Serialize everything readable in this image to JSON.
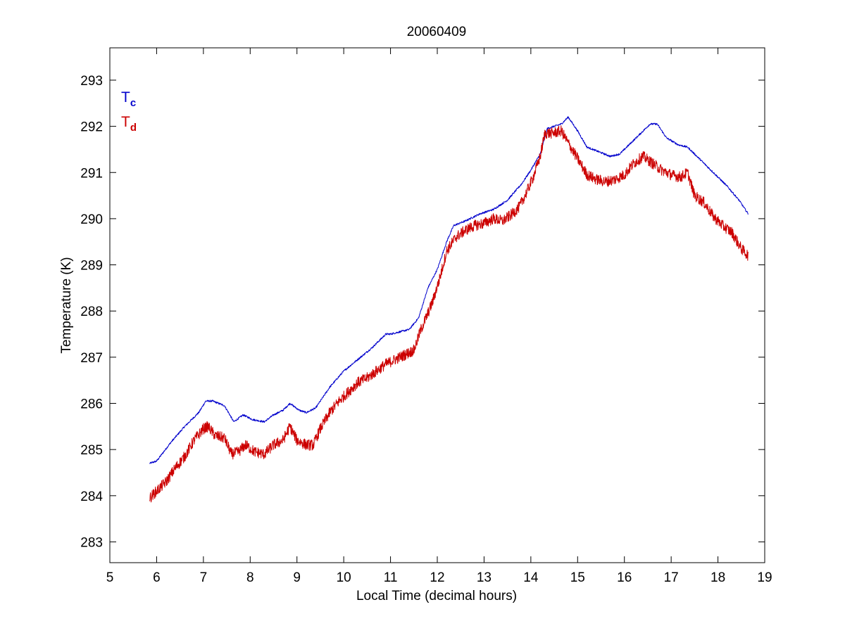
{
  "chart_data": {
    "type": "line",
    "title": "20060409",
    "xlabel": "Local Time (decimal hours)",
    "ylabel": "Temperature (K)",
    "xlim": [
      5,
      19
    ],
    "ylim": [
      282.55,
      293.7
    ],
    "xticks": [
      "5",
      "6",
      "7",
      "8",
      "9",
      "10",
      "11",
      "12",
      "13",
      "14",
      "15",
      "16",
      "17",
      "18",
      "19"
    ],
    "yticks": [
      "283",
      "284",
      "285",
      "286",
      "287",
      "288",
      "289",
      "290",
      "291",
      "292",
      "293"
    ],
    "grid": false,
    "legend_position": "top-left",
    "legend": [
      {
        "main": "T",
        "sub": "c",
        "color": "#0000cc"
      },
      {
        "main": "T",
        "sub": "d",
        "color": "#cc0000"
      }
    ],
    "series": [
      {
        "label": "Tc",
        "color": "#0000cc",
        "noise": 0.02,
        "x": [
          5.85,
          6.0,
          6.3,
          6.6,
          6.9,
          7.05,
          7.2,
          7.45,
          7.65,
          7.85,
          8.05,
          8.3,
          8.5,
          8.7,
          8.85,
          9.05,
          9.2,
          9.4,
          9.7,
          10.0,
          10.3,
          10.6,
          10.9,
          11.0,
          11.4,
          11.6,
          11.8,
          12.0,
          12.2,
          12.35,
          12.6,
          12.9,
          13.2,
          13.5,
          13.8,
          14.0,
          14.2,
          14.35,
          14.5,
          14.65,
          14.8,
          15.0,
          15.2,
          15.45,
          15.7,
          15.9,
          16.1,
          16.3,
          16.55,
          16.7,
          16.9,
          17.15,
          17.35,
          17.6,
          17.9,
          18.2,
          18.45,
          18.65
        ],
        "y": [
          284.7,
          284.75,
          285.15,
          285.5,
          285.8,
          286.05,
          286.05,
          285.95,
          285.6,
          285.75,
          285.65,
          285.6,
          285.75,
          285.85,
          286.0,
          285.85,
          285.8,
          285.9,
          286.35,
          286.7,
          286.95,
          287.2,
          287.5,
          287.5,
          287.6,
          287.85,
          288.5,
          288.9,
          289.5,
          289.85,
          289.95,
          290.1,
          290.2,
          290.4,
          290.75,
          291.05,
          291.4,
          291.95,
          292.0,
          292.05,
          292.2,
          291.9,
          291.55,
          291.45,
          291.35,
          291.4,
          291.6,
          291.8,
          292.05,
          292.05,
          291.75,
          291.6,
          291.55,
          291.3,
          291.0,
          290.7,
          290.4,
          290.1
        ]
      },
      {
        "label": "Td",
        "color": "#cc0000",
        "noise": 0.12,
        "x": [
          5.85,
          6.0,
          6.2,
          6.4,
          6.6,
          6.8,
          7.0,
          7.1,
          7.25,
          7.45,
          7.6,
          7.75,
          7.9,
          8.1,
          8.3,
          8.5,
          8.7,
          8.85,
          9.0,
          9.2,
          9.35,
          9.5,
          9.7,
          9.9,
          10.1,
          10.3,
          10.5,
          10.7,
          10.9,
          11.1,
          11.3,
          11.5,
          11.65,
          11.8,
          11.9,
          12.05,
          12.2,
          12.4,
          12.6,
          12.8,
          13.0,
          13.2,
          13.4,
          13.6,
          13.75,
          13.9,
          14.05,
          14.2,
          14.3,
          14.45,
          14.65,
          14.85,
          15.0,
          15.2,
          15.4,
          15.6,
          15.8,
          16.0,
          16.2,
          16.4,
          16.6,
          16.8,
          17.0,
          17.2,
          17.35,
          17.5,
          17.7,
          17.9,
          18.1,
          18.3,
          18.5,
          18.65
        ],
        "y": [
          283.95,
          284.1,
          284.3,
          284.6,
          284.85,
          285.2,
          285.45,
          285.5,
          285.3,
          285.25,
          284.9,
          284.95,
          285.1,
          284.95,
          284.9,
          285.1,
          285.2,
          285.5,
          285.2,
          285.1,
          285.1,
          285.45,
          285.8,
          286.05,
          286.25,
          286.45,
          286.55,
          286.7,
          286.85,
          286.95,
          287.05,
          287.15,
          287.6,
          287.95,
          288.2,
          288.7,
          289.3,
          289.6,
          289.75,
          289.85,
          289.9,
          290.0,
          289.95,
          290.1,
          290.25,
          290.55,
          290.9,
          291.35,
          291.85,
          291.85,
          291.9,
          291.55,
          291.3,
          290.95,
          290.85,
          290.8,
          290.85,
          290.95,
          291.2,
          291.35,
          291.2,
          291.05,
          290.95,
          290.9,
          291.0,
          290.5,
          290.35,
          290.05,
          289.85,
          289.7,
          289.35,
          289.2
        ]
      }
    ]
  }
}
